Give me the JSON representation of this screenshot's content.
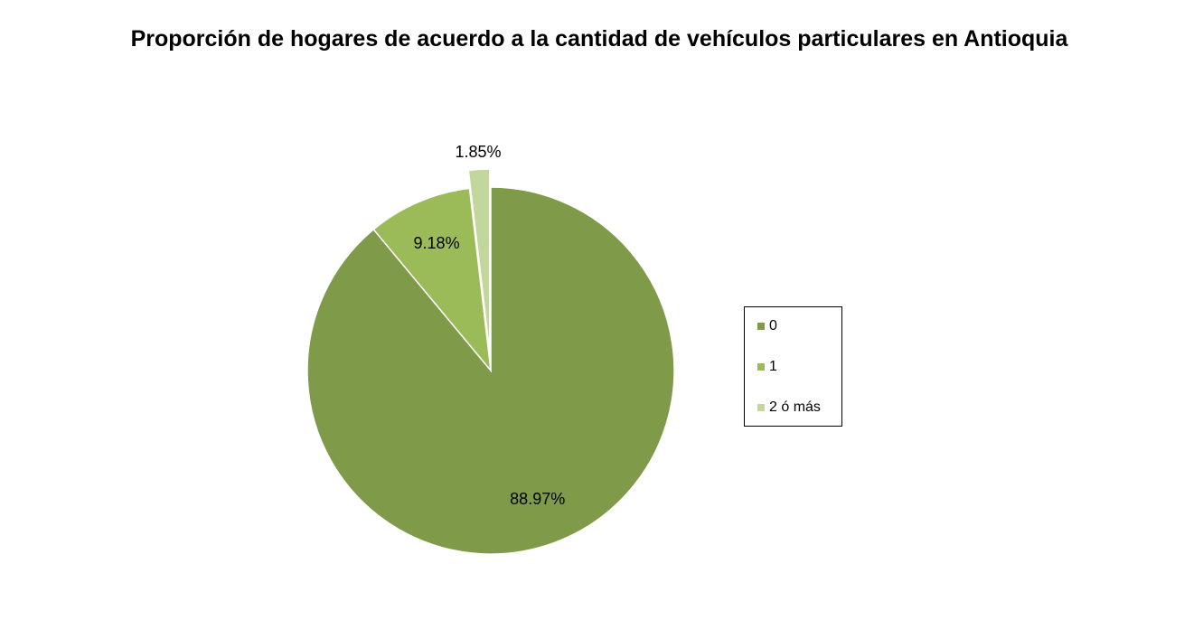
{
  "chart_data": {
    "type": "pie",
    "title": "Proporción de hogares de acuerdo a la cantidad de vehículos particulares en Antioquia",
    "categories": [
      "0",
      "1",
      "2 ó más"
    ],
    "values": [
      88.97,
      9.18,
      1.85
    ],
    "value_labels": [
      "88.97%",
      "9.18%",
      "1.85%"
    ],
    "colors": [
      "#7f9a48",
      "#9bbb59",
      "#c3d69b"
    ],
    "exploded": [
      false,
      false,
      true
    ],
    "legend": "right"
  }
}
